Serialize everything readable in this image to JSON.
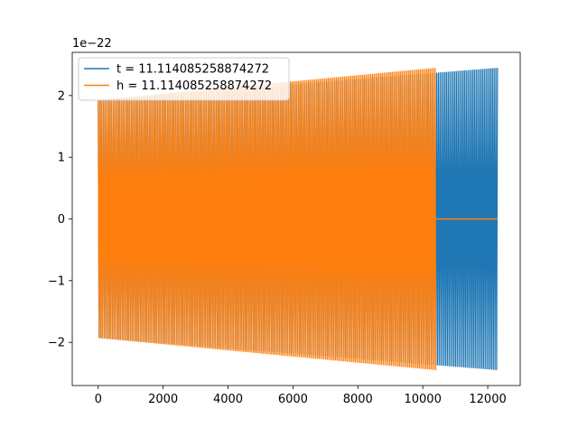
{
  "chart_data": {
    "type": "line",
    "title": "",
    "xlabel": "",
    "ylabel": "",
    "xlim": [
      -800,
      13000
    ],
    "ylim": [
      -2.7,
      2.7
    ],
    "xticks": [
      0,
      2000,
      4000,
      6000,
      8000,
      10000,
      12000
    ],
    "xtick_labels": [
      "0",
      "2000",
      "4000",
      "6000",
      "8000",
      "10000",
      "12000"
    ],
    "yticks": [
      -2,
      -1,
      0,
      1,
      2
    ],
    "ytick_labels": [
      "−2",
      "−1",
      "0",
      "1",
      "2"
    ],
    "y_offset_label": "1e−22",
    "grid": false,
    "legend_position": "upper-left",
    "series": [
      {
        "name": "t = 11.114085258874272",
        "color": "#1f77b4",
        "style": "dense-oscillation",
        "x_start": 0,
        "x_end": 12300,
        "amplitude_start": 1.93,
        "amplitude_end": 2.45,
        "trailing_zero": false
      },
      {
        "name": "h = 11.114085258874272",
        "color": "#ff7f0e",
        "style": "dense-oscillation",
        "x_start": 0,
        "x_end": 10400,
        "amplitude_start": 1.93,
        "amplitude_end": 2.45,
        "trailing_zero": true,
        "trailing_zero_end": 12300
      }
    ]
  }
}
